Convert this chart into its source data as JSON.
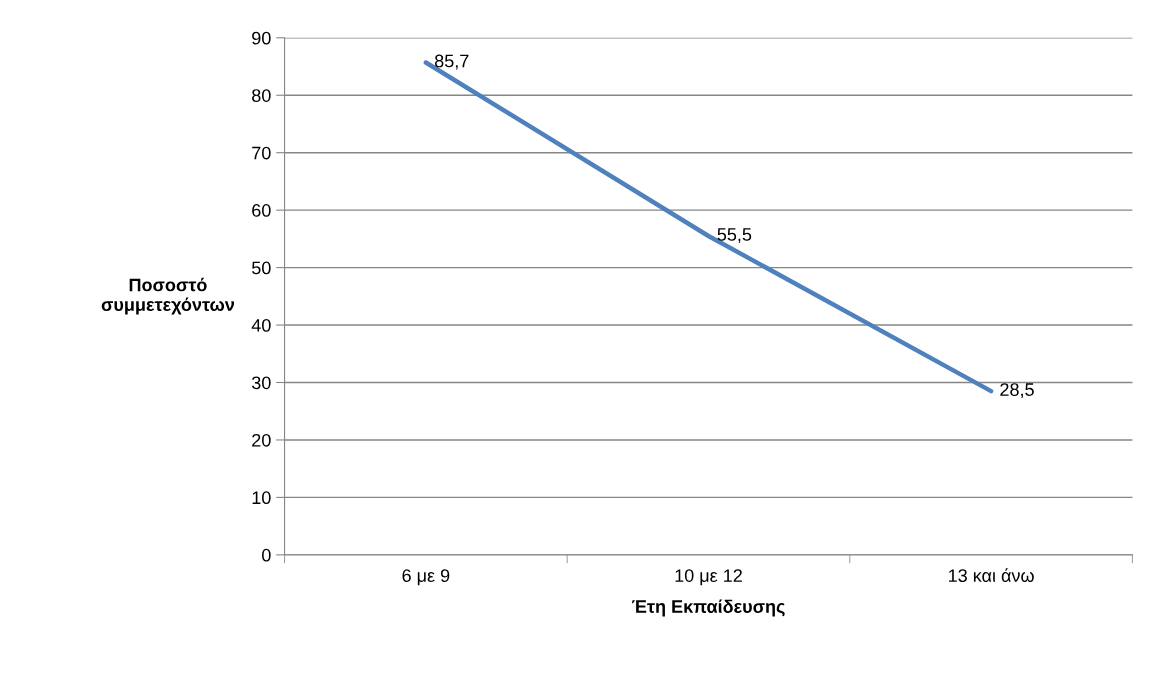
{
  "chart_data": {
    "type": "line",
    "xlabel": "Έτη Εκπαίδευσης",
    "ylabel": "Ποσοστό\nσυμμετεχόντων",
    "categories": [
      "6 με 9",
      "10 με 12",
      "13 και άνω"
    ],
    "series": [
      {
        "color": "#4f81bd",
        "values": [
          85.7,
          55.5,
          28.5
        ],
        "value_labels": [
          "85,7",
          "55,5",
          "28,5"
        ]
      }
    ],
    "ylim": [
      0,
      90
    ],
    "yticks": [
      0,
      10,
      20,
      30,
      40,
      50,
      60,
      70,
      80,
      90
    ],
    "grid": "y",
    "legend": false,
    "marker": "none",
    "line_style": "solid"
  }
}
